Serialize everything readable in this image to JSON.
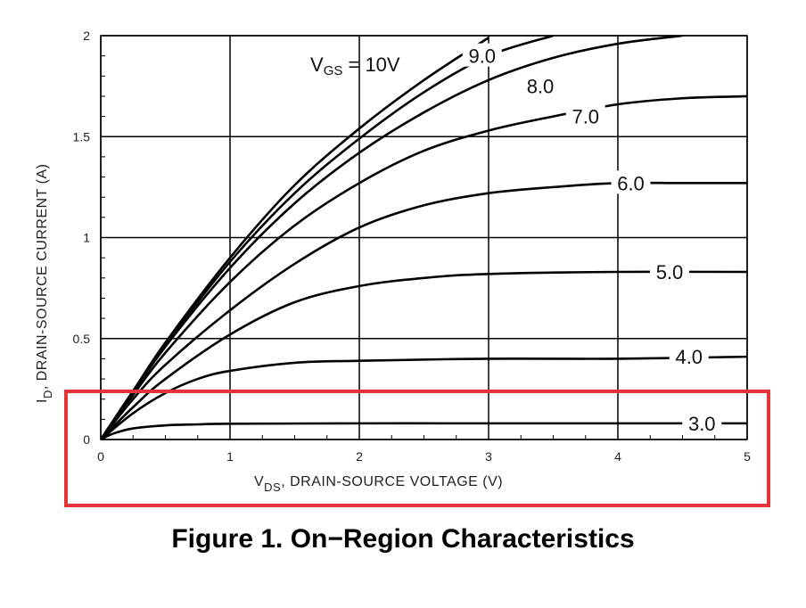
{
  "caption": "Figure 1. On−Region Characteristics",
  "highlight_color": "#e8323a",
  "chart_data": {
    "type": "line",
    "title": "",
    "xlabel_sub": "DS",
    "xlabel_prefix": "V",
    "xlabel_rest": ", DRAIN-SOURCE VOLTAGE (V)",
    "ylabel_prefix": "I",
    "ylabel_sub": "D",
    "ylabel_rest": ", DRAIN-SOURCE CURRENT (A)",
    "xlim": [
      0,
      5
    ],
    "ylim": [
      0,
      2
    ],
    "x_ticks": [
      "0",
      "1",
      "2",
      "3",
      "4",
      "5"
    ],
    "y_ticks": [
      "0",
      "0.5",
      "1",
      "1.5",
      "2"
    ],
    "grid": true,
    "vgs_label_main": "V",
    "vgs_label_sub": "GS",
    "vgs_label_rest": " = 10V",
    "series": [
      {
        "name": "10V",
        "points": [
          [
            0,
            0
          ],
          [
            0.25,
            0.24
          ],
          [
            0.5,
            0.48
          ],
          [
            1,
            0.9
          ],
          [
            1.5,
            1.26
          ],
          [
            2,
            1.54
          ],
          [
            2.5,
            1.78
          ],
          [
            3,
            1.99
          ]
        ]
      },
      {
        "name": "9.0",
        "points": [
          [
            0,
            0
          ],
          [
            0.25,
            0.24
          ],
          [
            0.5,
            0.47
          ],
          [
            1,
            0.88
          ],
          [
            1.5,
            1.22
          ],
          [
            2,
            1.49
          ],
          [
            2.5,
            1.72
          ],
          [
            3,
            1.9
          ],
          [
            3.5,
            2.0
          ]
        ]
      },
      {
        "name": "8.0",
        "points": [
          [
            0,
            0
          ],
          [
            0.25,
            0.23
          ],
          [
            0.5,
            0.46
          ],
          [
            1,
            0.85
          ],
          [
            1.5,
            1.17
          ],
          [
            2,
            1.42
          ],
          [
            2.5,
            1.62
          ],
          [
            3,
            1.78
          ],
          [
            3.5,
            1.89
          ],
          [
            4,
            1.96
          ],
          [
            4.5,
            2.0
          ]
        ]
      },
      {
        "name": "7.0",
        "points": [
          [
            0,
            0
          ],
          [
            0.25,
            0.22
          ],
          [
            0.5,
            0.43
          ],
          [
            1,
            0.78
          ],
          [
            1.5,
            1.06
          ],
          [
            2,
            1.27
          ],
          [
            2.5,
            1.43
          ],
          [
            3,
            1.53
          ],
          [
            3.5,
            1.6
          ],
          [
            4,
            1.66
          ],
          [
            4.5,
            1.69
          ],
          [
            5,
            1.7
          ]
        ]
      },
      {
        "name": "6.0",
        "points": [
          [
            0,
            0
          ],
          [
            0.25,
            0.2
          ],
          [
            0.5,
            0.37
          ],
          [
            1,
            0.64
          ],
          [
            1.5,
            0.87
          ],
          [
            2,
            1.05
          ],
          [
            2.5,
            1.16
          ],
          [
            3,
            1.22
          ],
          [
            3.5,
            1.25
          ],
          [
            4,
            1.27
          ],
          [
            4.5,
            1.27
          ],
          [
            5,
            1.27
          ]
        ]
      },
      {
        "name": "5.0",
        "points": [
          [
            0,
            0
          ],
          [
            0.25,
            0.16
          ],
          [
            0.5,
            0.3
          ],
          [
            1,
            0.52
          ],
          [
            1.5,
            0.68
          ],
          [
            2,
            0.76
          ],
          [
            2.5,
            0.8
          ],
          [
            3,
            0.82
          ],
          [
            4,
            0.83
          ],
          [
            5,
            0.83
          ]
        ]
      },
      {
        "name": "4.0",
        "points": [
          [
            0,
            0
          ],
          [
            0.25,
            0.13
          ],
          [
            0.5,
            0.23
          ],
          [
            0.75,
            0.3
          ],
          [
            1,
            0.34
          ],
          [
            1.5,
            0.38
          ],
          [
            2,
            0.39
          ],
          [
            3,
            0.4
          ],
          [
            4,
            0.4
          ],
          [
            5,
            0.41
          ]
        ]
      },
      {
        "name": "3.0",
        "points": [
          [
            0,
            0
          ],
          [
            0.1,
            0.03
          ],
          [
            0.25,
            0.055
          ],
          [
            0.5,
            0.07
          ],
          [
            0.75,
            0.075
          ],
          [
            1,
            0.078
          ],
          [
            2,
            0.08
          ],
          [
            3,
            0.08
          ],
          [
            4,
            0.08
          ],
          [
            5,
            0.08
          ]
        ]
      }
    ],
    "curve_labels": [
      {
        "text": "9.0",
        "x": 2.95,
        "y": 1.9
      },
      {
        "text": "8.0",
        "x": 3.4,
        "y": 1.75
      },
      {
        "text": "7.0",
        "x": 3.75,
        "y": 1.6
      },
      {
        "text": "6.0",
        "x": 4.1,
        "y": 1.27
      },
      {
        "text": "5.0",
        "x": 4.4,
        "y": 0.83
      },
      {
        "text": "4.0",
        "x": 4.55,
        "y": 0.41
      },
      {
        "text": "3.0",
        "x": 4.65,
        "y": 0.08
      }
    ]
  }
}
